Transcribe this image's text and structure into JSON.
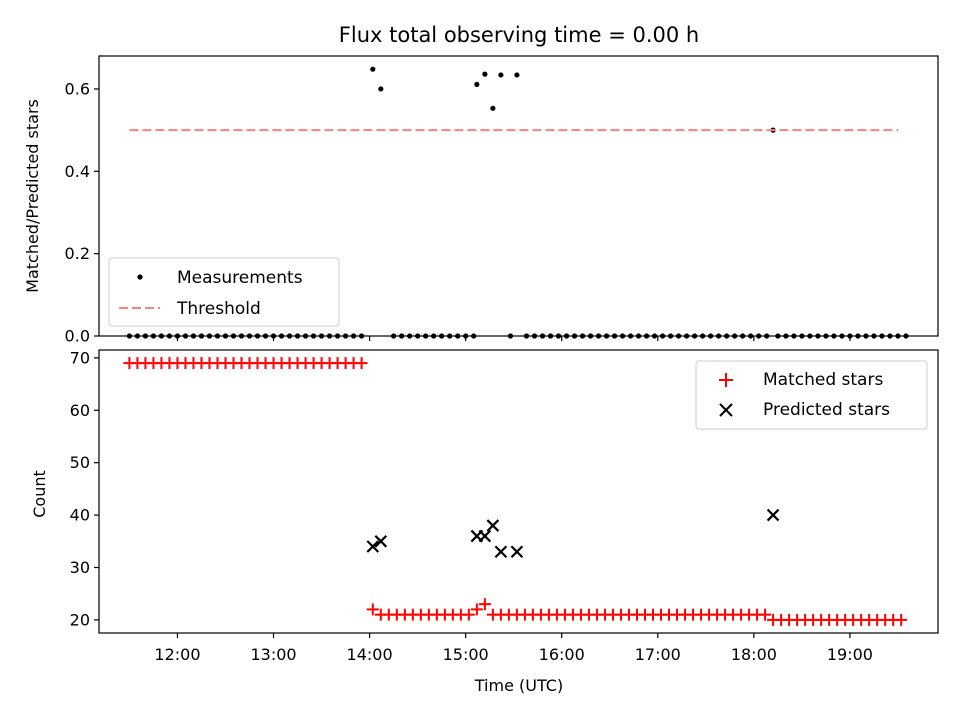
{
  "chart_data": [
    {
      "type": "scatter",
      "title": "Flux total observing time = 0.00 h",
      "ylabel": "Matched/Predicted stars",
      "xlabel": "",
      "xlim": [
        "11:11",
        "19:55"
      ],
      "ylim": [
        0,
        0.68
      ],
      "y_ticks": [
        0.0,
        0.2,
        0.4,
        0.6
      ],
      "y_tick_labels": [
        "0.0",
        "0.2",
        "0.4",
        "0.6"
      ],
      "grid": false,
      "legend": {
        "position": "lower-left",
        "entries": [
          {
            "label": "Measurements",
            "marker": "dot",
            "color": "#000000"
          },
          {
            "label": "Threshold",
            "style": "dashed-line",
            "color": "#ff7f7f"
          }
        ]
      },
      "series": [
        {
          "name": "Measurements",
          "marker": "dot",
          "color": "#000000",
          "points": [
            [
              "11:30",
              0.0
            ],
            [
              "11:35",
              0.0
            ],
            [
              "11:40",
              0.0
            ],
            [
              "11:45",
              0.0
            ],
            [
              "11:50",
              0.0
            ],
            [
              "11:55",
              0.0
            ],
            [
              "12:00",
              0.0
            ],
            [
              "12:05",
              0.0
            ],
            [
              "12:10",
              0.0
            ],
            [
              "12:15",
              0.0
            ],
            [
              "12:20",
              0.0
            ],
            [
              "12:25",
              0.0
            ],
            [
              "12:30",
              0.0
            ],
            [
              "12:35",
              0.0
            ],
            [
              "12:40",
              0.0
            ],
            [
              "12:45",
              0.0
            ],
            [
              "12:50",
              0.0
            ],
            [
              "12:55",
              0.0
            ],
            [
              "13:00",
              0.0
            ],
            [
              "13:05",
              0.0
            ],
            [
              "13:10",
              0.0
            ],
            [
              "13:15",
              0.0
            ],
            [
              "13:20",
              0.0
            ],
            [
              "13:25",
              0.0
            ],
            [
              "13:30",
              0.0
            ],
            [
              "13:35",
              0.0
            ],
            [
              "13:40",
              0.0
            ],
            [
              "13:45",
              0.0
            ],
            [
              "13:50",
              0.0
            ],
            [
              "13:55",
              0.0
            ],
            [
              "14:02",
              0.648
            ],
            [
              "14:07",
              0.6
            ],
            [
              "14:15",
              0.0
            ],
            [
              "14:20",
              0.0
            ],
            [
              "14:25",
              0.0
            ],
            [
              "14:30",
              0.0
            ],
            [
              "14:35",
              0.0
            ],
            [
              "14:40",
              0.0
            ],
            [
              "14:45",
              0.0
            ],
            [
              "14:50",
              0.0
            ],
            [
              "14:55",
              0.0
            ],
            [
              "15:00",
              0.0
            ],
            [
              "15:05",
              0.0
            ],
            [
              "15:07",
              0.611
            ],
            [
              "15:12",
              0.636
            ],
            [
              "15:17",
              0.553
            ],
            [
              "15:22",
              0.634
            ],
            [
              "15:32",
              0.634
            ],
            [
              "15:28",
              0.0
            ],
            [
              "15:38",
              0.0
            ],
            [
              "15:43",
              0.0
            ],
            [
              "15:48",
              0.0
            ],
            [
              "15:53",
              0.0
            ],
            [
              "15:58",
              0.0
            ],
            [
              "16:03",
              0.0
            ],
            [
              "16:08",
              0.0
            ],
            [
              "16:13",
              0.0
            ],
            [
              "16:18",
              0.0
            ],
            [
              "16:23",
              0.0
            ],
            [
              "16:28",
              0.0
            ],
            [
              "16:33",
              0.0
            ],
            [
              "16:38",
              0.0
            ],
            [
              "16:43",
              0.0
            ],
            [
              "16:48",
              0.0
            ],
            [
              "16:53",
              0.0
            ],
            [
              "16:58",
              0.0
            ],
            [
              "17:03",
              0.0
            ],
            [
              "17:08",
              0.0
            ],
            [
              "17:13",
              0.0
            ],
            [
              "17:18",
              0.0
            ],
            [
              "17:23",
              0.0
            ],
            [
              "17:28",
              0.0
            ],
            [
              "17:33",
              0.0
            ],
            [
              "17:38",
              0.0
            ],
            [
              "17:43",
              0.0
            ],
            [
              "17:48",
              0.0
            ],
            [
              "17:53",
              0.0
            ],
            [
              "17:58",
              0.0
            ],
            [
              "18:03",
              0.0
            ],
            [
              "18:08",
              0.0
            ],
            [
              "18:12",
              0.5
            ],
            [
              "18:15",
              0.0
            ],
            [
              "18:20",
              0.0
            ],
            [
              "18:25",
              0.0
            ],
            [
              "18:30",
              0.0
            ],
            [
              "18:35",
              0.0
            ],
            [
              "18:40",
              0.0
            ],
            [
              "18:45",
              0.0
            ],
            [
              "18:50",
              0.0
            ],
            [
              "18:55",
              0.0
            ],
            [
              "19:00",
              0.0
            ],
            [
              "19:05",
              0.0
            ],
            [
              "19:10",
              0.0
            ],
            [
              "19:15",
              0.0
            ],
            [
              "19:20",
              0.0
            ],
            [
              "19:25",
              0.0
            ],
            [
              "19:30",
              0.0
            ],
            [
              "19:35",
              0.0
            ]
          ]
        },
        {
          "name": "Threshold",
          "type": "line",
          "style": "dashed",
          "color": "#ff7f7f",
          "points": [
            [
              "11:30",
              0.5
            ],
            [
              "19:30",
              0.5
            ]
          ]
        }
      ]
    },
    {
      "type": "scatter",
      "title": "",
      "ylabel": "Count",
      "xlabel": "Time (UTC)",
      "xlim": [
        "11:11",
        "19:55"
      ],
      "ylim": [
        17.5,
        71.5
      ],
      "x_ticks": [
        "12:00",
        "13:00",
        "14:00",
        "15:00",
        "16:00",
        "17:00",
        "18:00",
        "19:00"
      ],
      "y_ticks": [
        20,
        30,
        40,
        50,
        60,
        70
      ],
      "y_tick_labels": [
        "20",
        "30",
        "40",
        "50",
        "60",
        "70"
      ],
      "grid": false,
      "legend": {
        "position": "upper-right",
        "entries": [
          {
            "label": "Matched stars",
            "marker": "plus",
            "color": "#ff0000"
          },
          {
            "label": "Predicted stars",
            "marker": "x",
            "color": "#000000"
          }
        ]
      },
      "series": [
        {
          "name": "Matched stars",
          "marker": "plus",
          "color": "#ff0000",
          "segments": [
            {
              "start": "11:30",
              "end": "13:55",
              "step_min": 5,
              "value": 69
            },
            {
              "start": "14:02",
              "end": "14:02",
              "step_min": 5,
              "value": 22
            },
            {
              "start": "14:07",
              "end": "15:02",
              "step_min": 5,
              "value": 21
            },
            {
              "start": "15:07",
              "end": "15:07",
              "step_min": 5,
              "value": 22
            },
            {
              "start": "15:12",
              "end": "15:12",
              "step_min": 5,
              "value": 23
            },
            {
              "start": "15:17",
              "end": "18:07",
              "step_min": 5,
              "value": 21
            },
            {
              "start": "18:12",
              "end": "19:32",
              "step_min": 5,
              "value": 20
            }
          ]
        },
        {
          "name": "Predicted stars",
          "marker": "x",
          "color": "#000000",
          "points": [
            [
              "14:02",
              34
            ],
            [
              "14:07",
              35
            ],
            [
              "15:07",
              36
            ],
            [
              "15:12",
              36
            ],
            [
              "15:17",
              38
            ],
            [
              "15:22",
              33
            ],
            [
              "15:32",
              33
            ],
            [
              "18:12",
              40
            ]
          ]
        }
      ]
    }
  ]
}
